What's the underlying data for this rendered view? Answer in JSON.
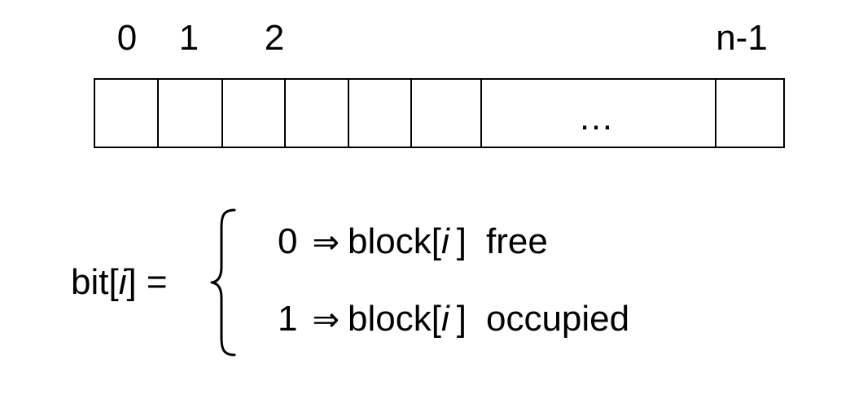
{
  "indices": {
    "i0": "0",
    "i1": "1",
    "i2": "2",
    "last": "n-1"
  },
  "array": {
    "ellipsis": "…"
  },
  "equation": {
    "lhs_prefix": "bit[",
    "lhs_var": "i",
    "lhs_suffix": "] =",
    "case0": {
      "value": "0",
      "arrow": "⇒",
      "prefix": "block[",
      "var": "i",
      "suffix": "]",
      "state": "free"
    },
    "case1": {
      "value": "1",
      "arrow": "⇒",
      "prefix": "block[",
      "var": "i",
      "suffix": "]",
      "state": "occupied"
    }
  }
}
